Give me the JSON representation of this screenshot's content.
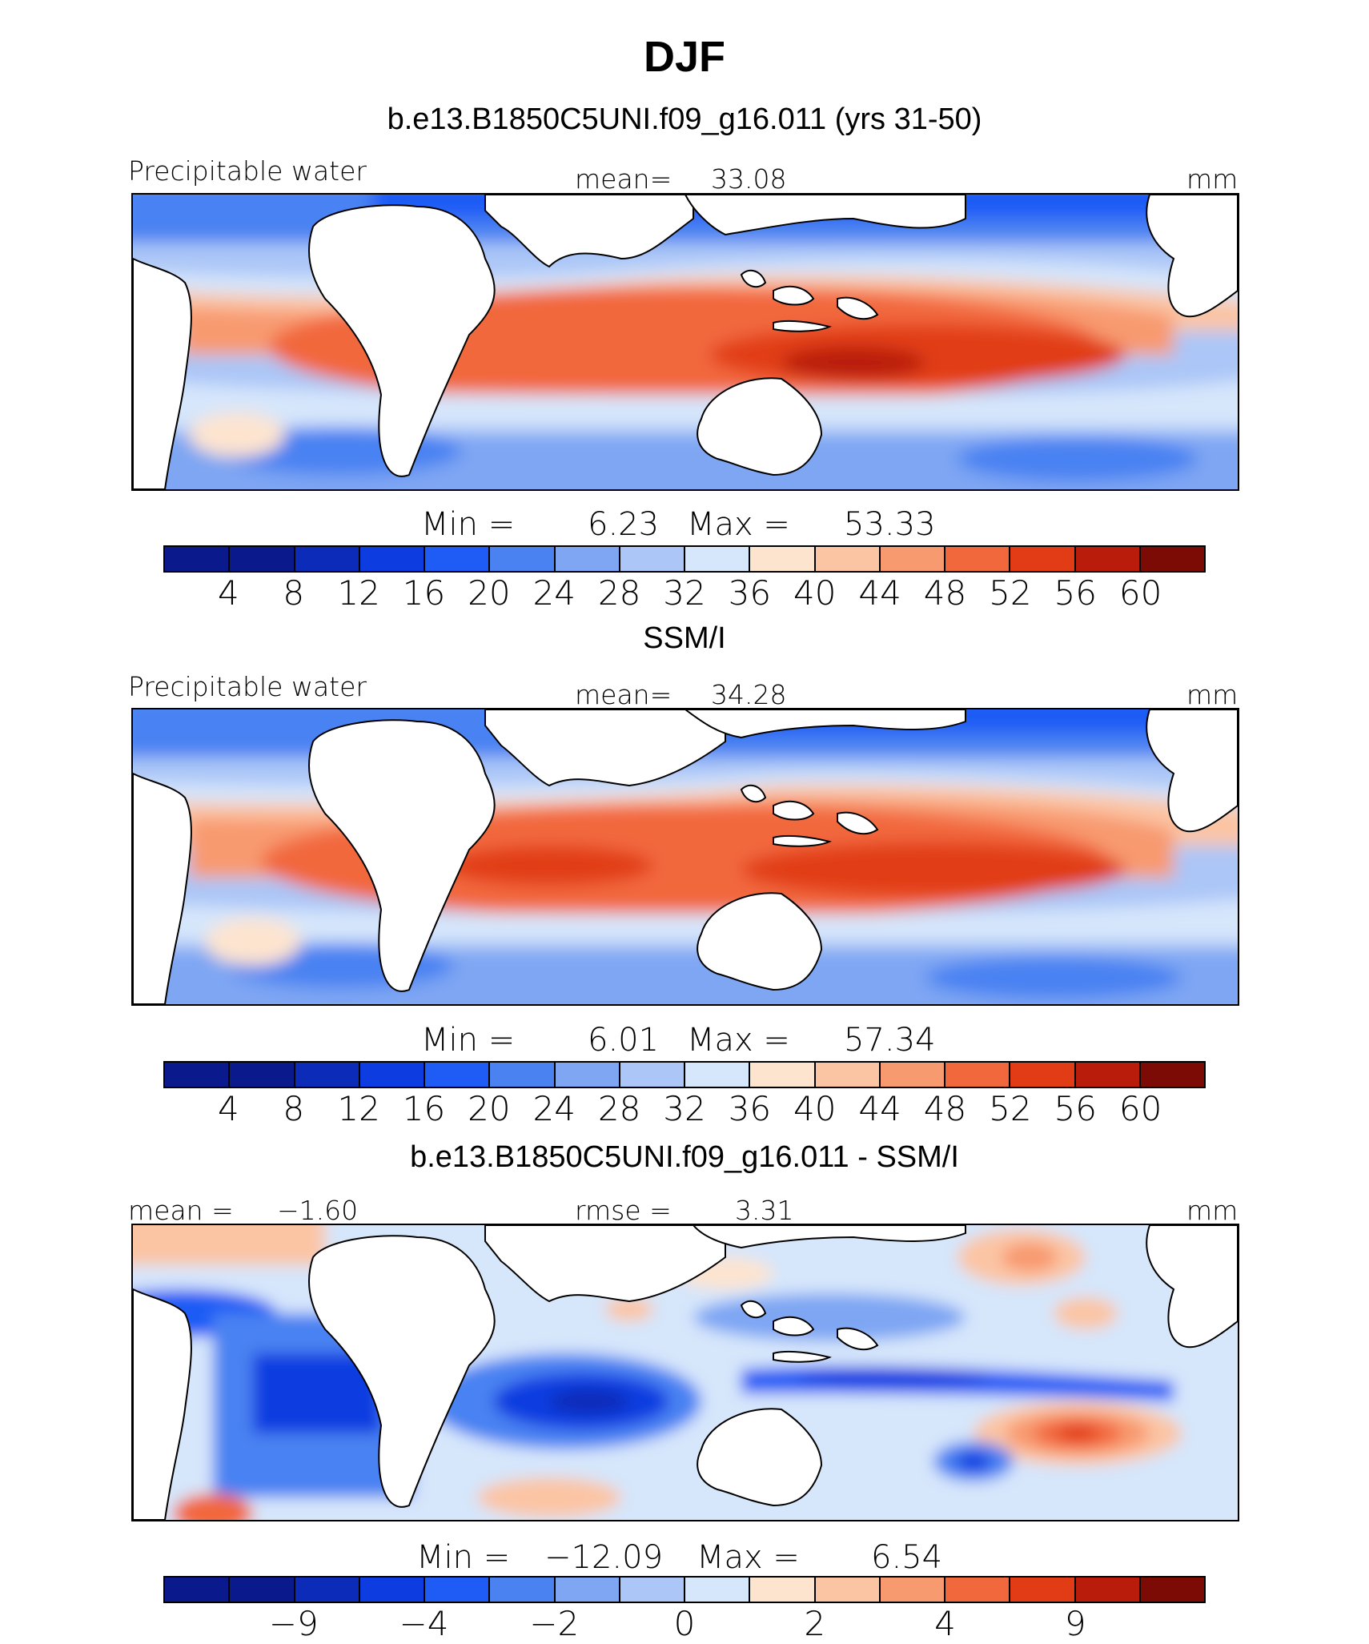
{
  "title": "DJF",
  "units": "mm",
  "palette": [
    "#0a1a8c",
    "#0b2bb8",
    "#0d3de0",
    "#1f5cf5",
    "#4a82f2",
    "#7ea6f3",
    "#abc6f7",
    "#d6e6fb",
    "#fde4cf",
    "#fbc5a4",
    "#f89a70",
    "#f2683d",
    "#e13c16",
    "#b91c0a",
    "#7c0a05"
  ],
  "panels": [
    {
      "title": "b.e13.B1850C5UNI.f09_g16.011 (yrs 31-50)",
      "left_label": "Precipitable water",
      "stat_label": "mean=",
      "stat_value": "33.08",
      "units": "mm",
      "min_label": "Min =",
      "min_value": "6.23",
      "max_label": "Max =",
      "max_value": "53.33",
      "ticks": [
        "4",
        "8",
        "12",
        "16",
        "20",
        "24",
        "28",
        "32",
        "36",
        "40",
        "44",
        "48",
        "52",
        "56",
        "60"
      ]
    },
    {
      "title": "SSM/I",
      "left_label": "Precipitable water",
      "stat_label": "mean=",
      "stat_value": "34.28",
      "units": "mm",
      "min_label": "Min =",
      "min_value": "6.01",
      "max_label": "Max =",
      "max_value": "57.34",
      "ticks": [
        "4",
        "8",
        "12",
        "16",
        "20",
        "24",
        "28",
        "32",
        "36",
        "40",
        "44",
        "48",
        "52",
        "56",
        "60"
      ]
    },
    {
      "title": "b.e13.B1850C5UNI.f09_g16.011 - SSM/I",
      "left_label": "mean =",
      "left_value": "−1.60",
      "stat_label": "rmse =",
      "stat_value": "3.31",
      "units": "mm",
      "min_label": "Min =",
      "min_value": "−12.09",
      "max_label": "Max =",
      "max_value": "6.54",
      "ticks": [
        "−9",
        "−4",
        "−2",
        "0",
        "2",
        "4",
        "9"
      ]
    }
  ]
}
